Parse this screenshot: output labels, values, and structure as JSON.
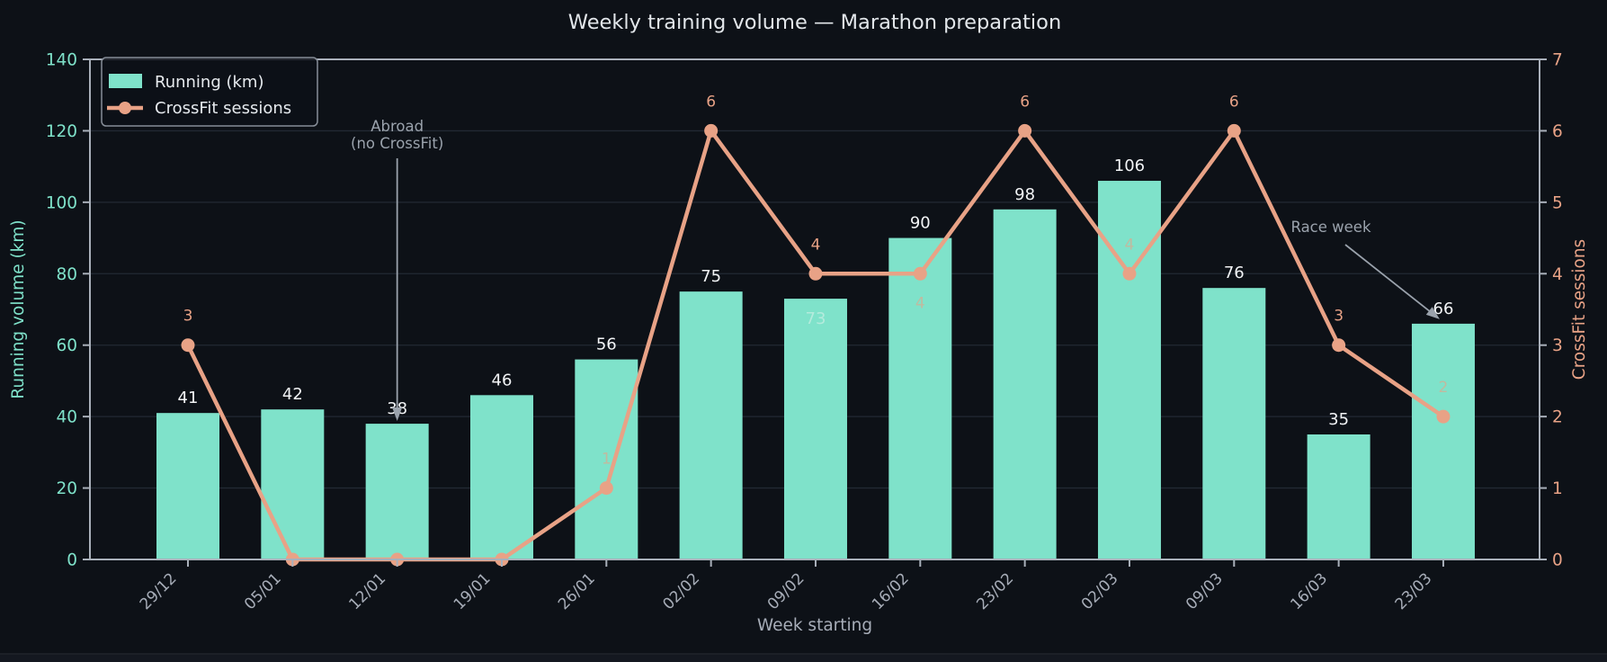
{
  "window": {
    "background": "#0d1117"
  },
  "colors": {
    "background": "#0d1117",
    "bar": "#7fe2ca",
    "line": "#e8a286",
    "grid": "#222933",
    "spine": "#a9b0ba",
    "title_text": "#e2e6ea",
    "x_tick_text": "#a7adb8",
    "bar_label_text": "#f2f4f6",
    "annotation_text": "#9aa2ac",
    "bottom_strip": "#141820"
  },
  "chart_data": {
    "type": "bar+line",
    "title": "Weekly training volume — Marathon preparation",
    "xlabel": "Week starting",
    "ylabel_left": "Running volume (km)",
    "ylabel_right": "CrossFit sessions",
    "categories": [
      "29/12",
      "05/01",
      "12/01",
      "19/01",
      "26/01",
      "02/02",
      "09/02",
      "16/02",
      "23/02",
      "02/03",
      "09/03",
      "16/03",
      "23/03"
    ],
    "series": [
      {
        "name": "Running (km)",
        "type": "bar",
        "axis": "left",
        "color": "#7fe2ca",
        "values": [
          41,
          42,
          38,
          46,
          56,
          75,
          73,
          90,
          98,
          106,
          76,
          35,
          66
        ],
        "value_label_placement": [
          "above",
          "above",
          "above",
          "above",
          "above",
          "above",
          "inside",
          "above",
          "above",
          "above",
          "above",
          "above",
          "above"
        ]
      },
      {
        "name": "CrossFit sessions",
        "type": "line",
        "axis": "right",
        "color": "#e8a286",
        "values": [
          3,
          0,
          0,
          0,
          1,
          6,
          4,
          4,
          6,
          4,
          6,
          3,
          2
        ],
        "value_label_placement": [
          "above",
          null,
          null,
          null,
          "above-dim",
          "above",
          "above",
          "below-dim",
          "above",
          "above-dim",
          "above",
          "above",
          "above-dim"
        ]
      }
    ],
    "ylim_left": [
      0,
      140
    ],
    "yticks_left": [
      0,
      20,
      40,
      60,
      80,
      100,
      120,
      140
    ],
    "ylim_right": [
      0,
      7
    ],
    "yticks_right": [
      0,
      1,
      2,
      3,
      4,
      5,
      6,
      7
    ],
    "grid": true,
    "legend_position": "upper left",
    "annotations": [
      {
        "lines": [
          "Abroad",
          "(no CrossFit)"
        ],
        "points_to": "12/01"
      },
      {
        "lines": [
          "Race week"
        ],
        "points_to": "23/03"
      }
    ]
  }
}
